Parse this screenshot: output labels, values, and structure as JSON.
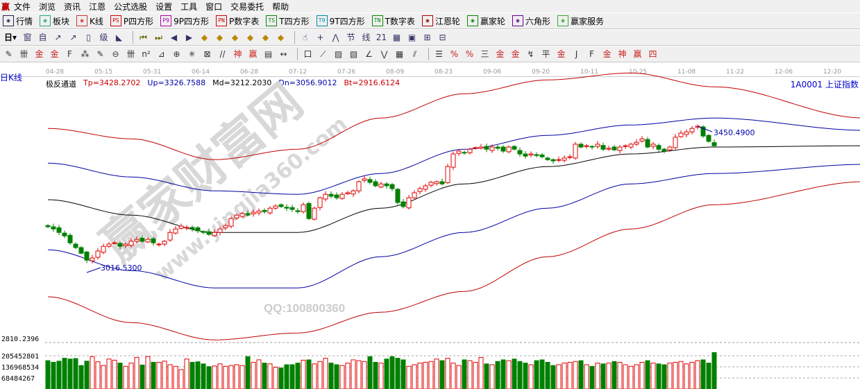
{
  "menu": {
    "logo": "赢",
    "items": [
      "文件",
      "浏览",
      "资讯",
      "江恩",
      "公式选股",
      "设置",
      "工具",
      "窗口",
      "交易委托",
      "帮助"
    ]
  },
  "toolbar1": [
    {
      "icon": "grid-icon",
      "label": "行情",
      "color": "#225"
    },
    {
      "icon": "blocks-icon",
      "label": "板块",
      "color": "#2a7"
    },
    {
      "icon": "kline-icon",
      "label": "K线",
      "color": "#c33"
    },
    {
      "icon": "PS",
      "label": "P四方形",
      "color": "#c00"
    },
    {
      "icon": "P9",
      "label": "9P四方形",
      "color": "#a0a"
    },
    {
      "icon": "PN",
      "label": "P数字表",
      "color": "#c00"
    },
    {
      "icon": "TS",
      "label": "T四方形",
      "color": "#080"
    },
    {
      "icon": "T9",
      "label": "9T四方形",
      "color": "#08a"
    },
    {
      "icon": "TN",
      "label": "T数字表",
      "color": "#080"
    },
    {
      "icon": "target-icon",
      "label": "江恩轮",
      "color": "#a00"
    },
    {
      "icon": "big-wheel-icon",
      "label": "赢家轮",
      "color": "#080"
    },
    {
      "icon": "hexagon-icon",
      "label": "六角形",
      "color": "#609"
    },
    {
      "icon": "dollar-icon",
      "label": "赢家服务",
      "color": "#3a3"
    }
  ],
  "toolbar2": {
    "period": "日",
    "icons": [
      "窗",
      "自",
      "↗",
      "↗",
      "▯",
      "级",
      "◣",
      "⏮",
      "⏭",
      "◀",
      "▶",
      "◆",
      "◆",
      "◆",
      "◆",
      "◆",
      "◆",
      "☝",
      "+",
      "⋀",
      "节",
      "线",
      "21",
      "▦",
      "▣",
      "⊞",
      "⊟"
    ]
  },
  "toolbar3": {
    "icons": [
      "✎",
      "卌",
      "金",
      "金",
      "F",
      "⁂",
      "✎",
      "⊖",
      "卌",
      "n²",
      "⊿",
      "⊕",
      "✳",
      "⊠",
      "//",
      "神",
      "赢",
      "▤",
      "↔",
      "|",
      "口",
      "⟋",
      "▨",
      "▧",
      "∠",
      "⋁",
      "▦",
      "⫽",
      "|",
      "☰",
      "%",
      "%",
      "三",
      "金",
      "金",
      "↯",
      "平",
      "金",
      "J",
      "F",
      "金",
      "神",
      "赢",
      "四"
    ]
  },
  "dates": [
    "04-28",
    "05-15",
    "05-31",
    "06-14",
    "06-28",
    "07-12",
    "07-26",
    "08-09",
    "08-23",
    "09-06",
    "09-20",
    "10-11",
    "10-25",
    "11-08",
    "11-22",
    "12-06",
    "12-20"
  ],
  "period_label": "日K线",
  "indicator": {
    "name": "极反通道",
    "tp": "Tp=3428.2702",
    "up": "Up=3326.7588",
    "md": "Md=3212.2030",
    "dn": "Dn=3056.9012",
    "bt": "Bt=2916.6124"
  },
  "security": "1A0001  上证指数",
  "watermark": {
    "brand": "赢家财富网",
    "url": "www.yingjia360.com",
    "qq": "QQ:100800360"
  },
  "colors": {
    "up": "#e00000",
    "down": "#008000",
    "tp": "#c00000",
    "band": "#0000a0",
    "mid": "#000000"
  },
  "chart_data": {
    "type": "candlestick",
    "price_labels": {
      "max": "3450.4900",
      "min": "3016.5300",
      "axis_low": "2810.2396"
    },
    "closes": [
      3149,
      3142,
      3131,
      3120,
      3098,
      3083,
      3065,
      3043,
      3050,
      3072,
      3087,
      3094,
      3098,
      3087,
      3094,
      3103,
      3109,
      3103,
      3109,
      3098,
      3094,
      3103,
      3131,
      3142,
      3151,
      3147,
      3142,
      3136,
      3131,
      3125,
      3131,
      3142,
      3153,
      3175,
      3186,
      3191,
      3186,
      3195,
      3199,
      3197,
      3208,
      3215,
      3213,
      3208,
      3204,
      3197,
      3219,
      3175,
      3208,
      3241,
      3252,
      3246,
      3241,
      3252,
      3257,
      3263,
      3292,
      3301,
      3290,
      3279,
      3285,
      3279,
      3270,
      3226,
      3213,
      3241,
      3257,
      3270,
      3279,
      3290,
      3292,
      3285,
      3340,
      3380,
      3389,
      3384,
      3395,
      3400,
      3402,
      3395,
      3402,
      3398,
      3389,
      3402,
      3395,
      3380,
      3373,
      3380,
      3375,
      3371,
      3362,
      3358,
      3362,
      3367,
      3371,
      3411,
      3402,
      3406,
      3402,
      3411,
      3395,
      3398,
      3393,
      3402,
      3406,
      3411,
      3417,
      3428,
      3402,
      3411,
      3395,
      3389,
      3402,
      3433,
      3446,
      3450,
      3461,
      3468,
      3437,
      3420,
      3406
    ],
    "bands_index": [
      0,
      15,
      30,
      45,
      60,
      75,
      90,
      105,
      120,
      147
    ],
    "bands": [
      {
        "key": "tp",
        "values": [
          3461,
          3428,
          3362,
          3395,
          3494,
          3571,
          3615,
          3637,
          3593,
          3494
        ]
      },
      {
        "key": "up",
        "values": [
          3351,
          3307,
          3263,
          3252,
          3318,
          3395,
          3439,
          3472,
          3494,
          3455
        ]
      },
      {
        "key": "md",
        "values": [
          3235,
          3186,
          3131,
          3131,
          3208,
          3285,
          3340,
          3380,
          3402,
          3406
        ]
      },
      {
        "key": "dn",
        "values": [
          3076,
          3010,
          2955,
          2955,
          3054,
          3131,
          3208,
          3285,
          3318,
          3347
        ]
      },
      {
        "key": "bt",
        "values": [
          2927,
          2845,
          2790,
          2812,
          2878,
          2944,
          3054,
          3142,
          3219,
          3292
        ]
      }
    ],
    "volume_labels": [
      "205452801",
      "136968534",
      "68484267"
    ],
    "volumes_millions": [
      175,
      165,
      172,
      190,
      185,
      188,
      145,
      172,
      200,
      168,
      145,
      185,
      178,
      160,
      140,
      160,
      195,
      148,
      200,
      165,
      165,
      172,
      150,
      140,
      120,
      185,
      165,
      168,
      155,
      138,
      142,
      155,
      140,
      145,
      150,
      145,
      200,
      165,
      180,
      160,
      155,
      135,
      130,
      150,
      150,
      160,
      178,
      180,
      155,
      170,
      190,
      160,
      150,
      145,
      160,
      180,
      175,
      170,
      200,
      165,
      160,
      185,
      200,
      190,
      180,
      140,
      150,
      160,
      165,
      170,
      185,
      175,
      190,
      160,
      145,
      180,
      175,
      165,
      195,
      155,
      150,
      170,
      180,
      175,
      185,
      170,
      160,
      150,
      175,
      180,
      165,
      145,
      150,
      160,
      165,
      170,
      175,
      150,
      140,
      160,
      155,
      160,
      170,
      165,
      150,
      140,
      150,
      165,
      175,
      160,
      155,
      150,
      160,
      165,
      170,
      155,
      165,
      175,
      180,
      160,
      225
    ]
  }
}
